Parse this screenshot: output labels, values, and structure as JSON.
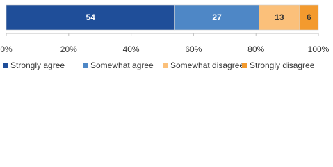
{
  "chart_data": {
    "type": "bar",
    "orientation": "horizontal",
    "stacked": true,
    "categories": [
      null
    ],
    "series": [
      {
        "name": "Strongly agree",
        "color": "#1f4e99",
        "label_color": "#ffffff",
        "values": [
          54
        ]
      },
      {
        "name": "Somewhat agree",
        "color": "#4e87c6",
        "label_color": "#ffffff",
        "values": [
          27
        ]
      },
      {
        "name": "Somewhat disagree",
        "color": "#fbc07a",
        "label_color": "#333333",
        "values": [
          13
        ]
      },
      {
        "name": "Strongly disagree",
        "color": "#f39a2e",
        "label_color": "#333333",
        "values": [
          6
        ]
      }
    ],
    "xlim": [
      0,
      100
    ],
    "xticks": [
      {
        "value": 0,
        "label": "0%"
      },
      {
        "value": 20,
        "label": "20%"
      },
      {
        "value": 40,
        "label": "40%"
      },
      {
        "value": 60,
        "label": "60%"
      },
      {
        "value": 80,
        "label": "80%"
      },
      {
        "value": 100,
        "label": "100%"
      }
    ],
    "legend": "bottom"
  }
}
